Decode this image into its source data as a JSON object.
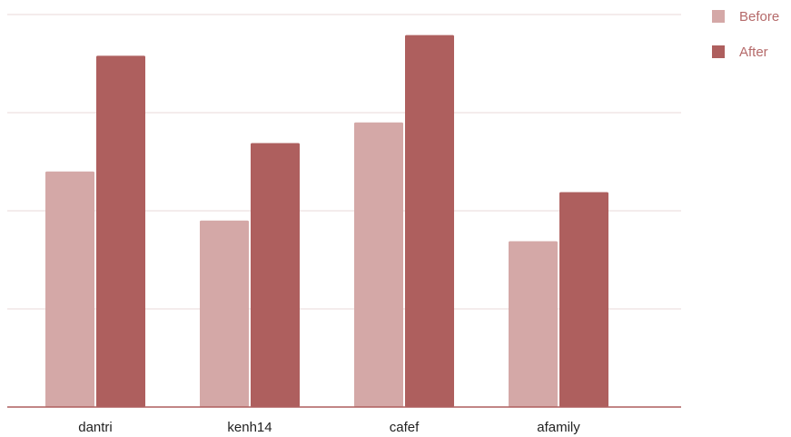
{
  "chart_data": {
    "type": "bar",
    "title": "",
    "xlabel": "",
    "ylabel": "",
    "categories": [
      "dantri",
      "kenh14",
      "cafef",
      "afamily"
    ],
    "series": [
      {
        "name": "Before",
        "values": [
          240,
          190,
          290,
          169
        ],
        "color": "#d4a8a7"
      },
      {
        "name": "After",
        "values": [
          358,
          269,
          379,
          219
        ],
        "color": "#ae5f5e"
      }
    ],
    "ylim": [
      0,
      400
    ],
    "y_gridlines": [
      0,
      100,
      200,
      300,
      400
    ],
    "grid": true,
    "y_tick_labels_shown": false,
    "legend_placement": "top-right",
    "axis_color": "#ae5f5e",
    "grid_color": "#ead9d9"
  }
}
